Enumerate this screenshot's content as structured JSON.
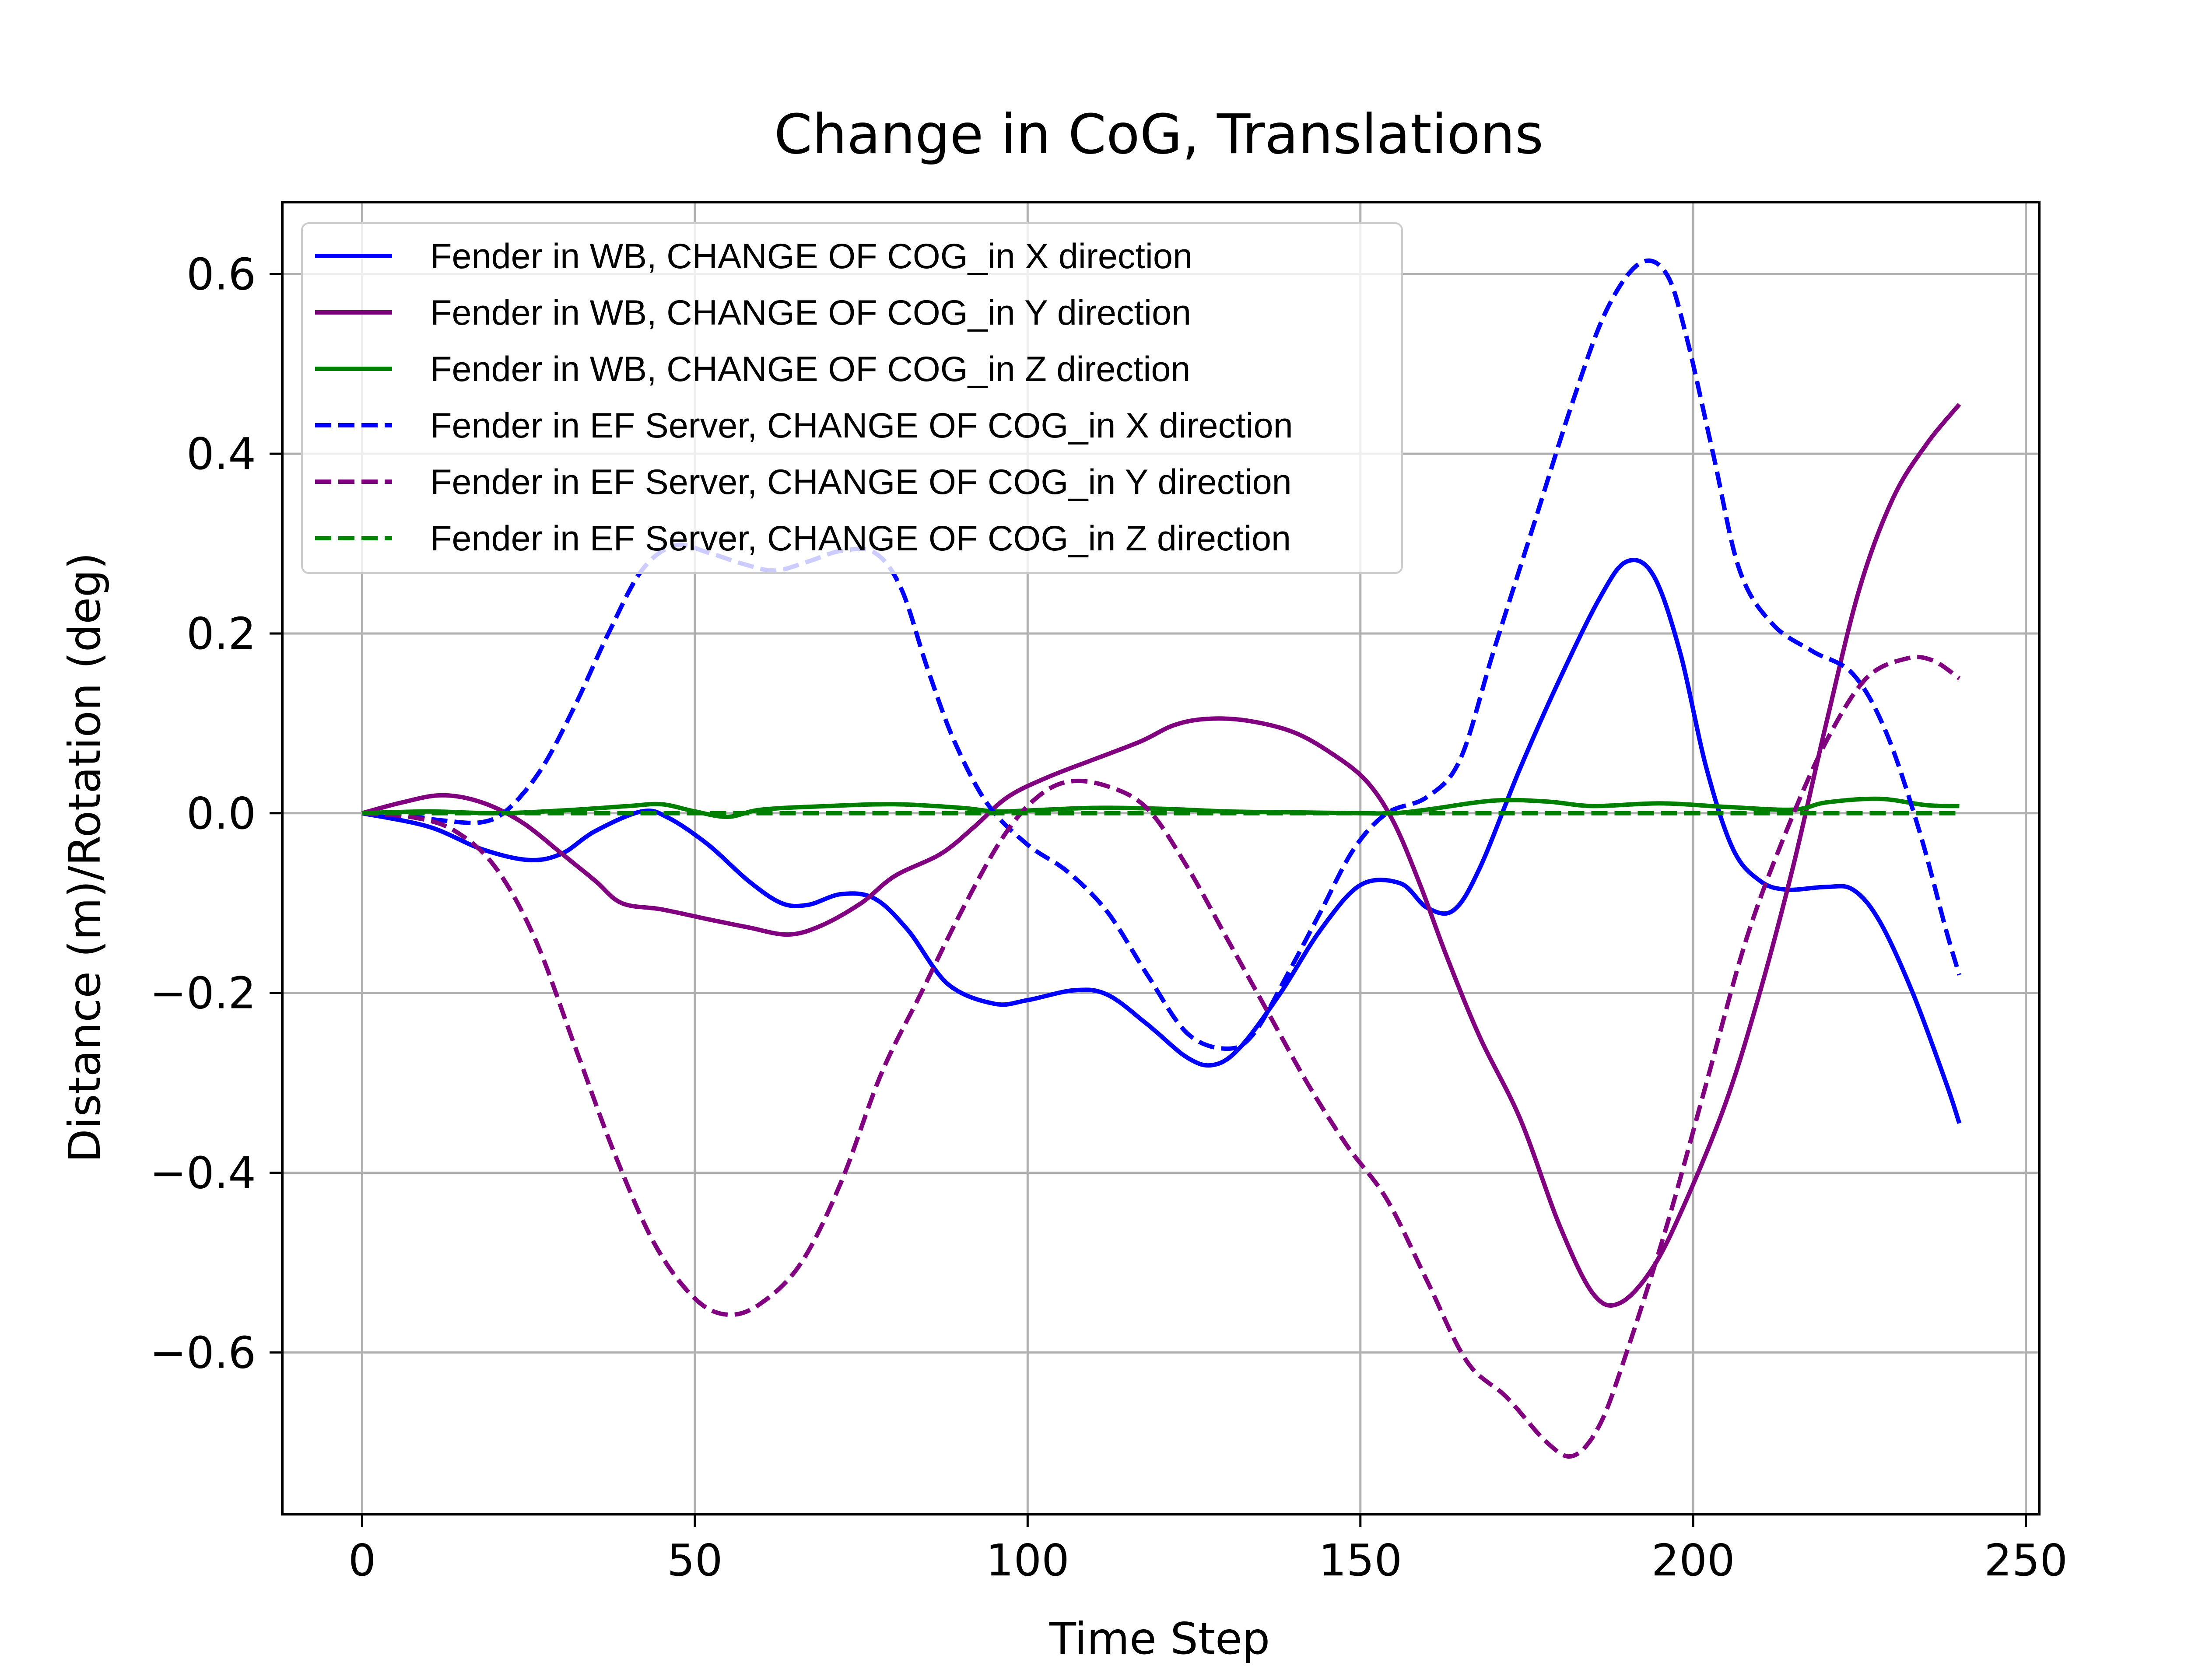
{
  "chart_data": {
    "type": "line",
    "title": "Change in CoG, Translations",
    "xlabel": "Time Step",
    "ylabel": "Distance (m)/Rotation (deg)",
    "xlim": [
      -12,
      252
    ],
    "ylim": [
      -0.78,
      0.68
    ],
    "x_ticks": [
      0,
      50,
      100,
      150,
      200,
      250
    ],
    "x_tick_labels": [
      "0",
      "50",
      "100",
      "150",
      "200",
      "250"
    ],
    "y_ticks": [
      0.6,
      0.4,
      0.2,
      0.0,
      -0.2,
      -0.4,
      -0.6
    ],
    "y_tick_labels": [
      "0.6",
      "0.4",
      "0.2",
      "0.0",
      "−0.2",
      "−0.4",
      "−0.6"
    ],
    "grid": true,
    "legend_position": "upper-left",
    "series": [
      {
        "name": "Fender in WB, CHANGE OF COG_in X direction",
        "color": "#0000ff",
        "style": "solid",
        "points": [
          [
            0,
            0
          ],
          [
            10,
            -0.015
          ],
          [
            18,
            -0.04
          ],
          [
            25,
            -0.052
          ],
          [
            30,
            -0.045
          ],
          [
            35,
            -0.02
          ],
          [
            42,
            0.002
          ],
          [
            46,
            -0.005
          ],
          [
            52,
            -0.035
          ],
          [
            58,
            -0.075
          ],
          [
            63,
            -0.1
          ],
          [
            67,
            -0.102
          ],
          [
            72,
            -0.09
          ],
          [
            77,
            -0.095
          ],
          [
            82,
            -0.13
          ],
          [
            88,
            -0.19
          ],
          [
            95,
            -0.212
          ],
          [
            100,
            -0.208
          ],
          [
            107,
            -0.197
          ],
          [
            112,
            -0.202
          ],
          [
            118,
            -0.235
          ],
          [
            124,
            -0.272
          ],
          [
            128,
            -0.28
          ],
          [
            132,
            -0.26
          ],
          [
            138,
            -0.2
          ],
          [
            144,
            -0.13
          ],
          [
            150,
            -0.08
          ],
          [
            156,
            -0.078
          ],
          [
            160,
            -0.105
          ],
          [
            164,
            -0.108
          ],
          [
            168,
            -0.06
          ],
          [
            174,
            0.05
          ],
          [
            180,
            0.15
          ],
          [
            186,
            0.24
          ],
          [
            190,
            0.28
          ],
          [
            194,
            0.265
          ],
          [
            198,
            0.18
          ],
          [
            202,
            0.05
          ],
          [
            206,
            -0.04
          ],
          [
            210,
            -0.075
          ],
          [
            214,
            -0.085
          ],
          [
            220,
            -0.082
          ],
          [
            224,
            -0.085
          ],
          [
            228,
            -0.12
          ],
          [
            233,
            -0.2
          ],
          [
            238,
            -0.3
          ],
          [
            240,
            -0.345
          ]
        ]
      },
      {
        "name": "Fender in WB, CHANGE OF COG_in Y direction",
        "color": "#800080",
        "style": "solid",
        "points": [
          [
            0,
            0
          ],
          [
            6,
            0.012
          ],
          [
            12,
            0.02
          ],
          [
            18,
            0.012
          ],
          [
            24,
            -0.01
          ],
          [
            30,
            -0.045
          ],
          [
            35,
            -0.075
          ],
          [
            39,
            -0.1
          ],
          [
            45,
            -0.107
          ],
          [
            52,
            -0.118
          ],
          [
            58,
            -0.127
          ],
          [
            64,
            -0.135
          ],
          [
            69,
            -0.125
          ],
          [
            75,
            -0.1
          ],
          [
            80,
            -0.07
          ],
          [
            87,
            -0.045
          ],
          [
            92,
            -0.015
          ],
          [
            97,
            0.018
          ],
          [
            103,
            0.04
          ],
          [
            110,
            0.06
          ],
          [
            117,
            0.08
          ],
          [
            122,
            0.098
          ],
          [
            127,
            0.105
          ],
          [
            133,
            0.103
          ],
          [
            140,
            0.09
          ],
          [
            146,
            0.065
          ],
          [
            151,
            0.035
          ],
          [
            155,
            -0.01
          ],
          [
            159,
            -0.08
          ],
          [
            163,
            -0.16
          ],
          [
            168,
            -0.25
          ],
          [
            174,
            -0.34
          ],
          [
            180,
            -0.46
          ],
          [
            185,
            -0.535
          ],
          [
            189,
            -0.545
          ],
          [
            194,
            -0.505
          ],
          [
            199,
            -0.43
          ],
          [
            205,
            -0.32
          ],
          [
            210,
            -0.2
          ],
          [
            215,
            -0.06
          ],
          [
            220,
            0.1
          ],
          [
            225,
            0.25
          ],
          [
            230,
            0.35
          ],
          [
            235,
            0.41
          ],
          [
            240,
            0.455
          ]
        ]
      },
      {
        "name": "Fender in WB, CHANGE OF COG_in Z direction",
        "color": "#008000",
        "style": "solid",
        "points": [
          [
            0,
            0
          ],
          [
            10,
            0.002
          ],
          [
            20,
            0.0
          ],
          [
            30,
            0.003
          ],
          [
            40,
            0.008
          ],
          [
            45,
            0.01
          ],
          [
            50,
            0.002
          ],
          [
            55,
            -0.004
          ],
          [
            60,
            0.004
          ],
          [
            70,
            0.008
          ],
          [
            80,
            0.01
          ],
          [
            90,
            0.006
          ],
          [
            95,
            0.002
          ],
          [
            100,
            0.003
          ],
          [
            110,
            0.006
          ],
          [
            120,
            0.005
          ],
          [
            130,
            0.002
          ],
          [
            140,
            0.001
          ],
          [
            150,
            0.0
          ],
          [
            155,
            0.0
          ],
          [
            160,
            0.004
          ],
          [
            170,
            0.014
          ],
          [
            178,
            0.013
          ],
          [
            185,
            0.008
          ],
          [
            195,
            0.011
          ],
          [
            205,
            0.007
          ],
          [
            215,
            0.004
          ],
          [
            220,
            0.012
          ],
          [
            228,
            0.016
          ],
          [
            235,
            0.009
          ],
          [
            240,
            0.008
          ]
        ]
      },
      {
        "name": "Fender in EF Server, CHANGE OF COG_in X direction",
        "color": "#0000ff",
        "style": "dashed",
        "points": [
          [
            0,
            0
          ],
          [
            6,
            -0.002
          ],
          [
            12,
            -0.008
          ],
          [
            18,
            -0.01
          ],
          [
            22,
            0.005
          ],
          [
            27,
            0.05
          ],
          [
            32,
            0.12
          ],
          [
            37,
            0.2
          ],
          [
            42,
            0.27
          ],
          [
            47,
            0.298
          ],
          [
            52,
            0.29
          ],
          [
            57,
            0.278
          ],
          [
            62,
            0.27
          ],
          [
            67,
            0.28
          ],
          [
            72,
            0.292
          ],
          [
            77,
            0.29
          ],
          [
            81,
            0.25
          ],
          [
            85,
            0.16
          ],
          [
            89,
            0.08
          ],
          [
            94,
            0.01
          ],
          [
            100,
            -0.035
          ],
          [
            106,
            -0.065
          ],
          [
            112,
            -0.11
          ],
          [
            118,
            -0.18
          ],
          [
            124,
            -0.245
          ],
          [
            130,
            -0.262
          ],
          [
            134,
            -0.245
          ],
          [
            139,
            -0.18
          ],
          [
            144,
            -0.11
          ],
          [
            149,
            -0.04
          ],
          [
            154,
            0.0
          ],
          [
            160,
            0.018
          ],
          [
            165,
            0.06
          ],
          [
            170,
            0.18
          ],
          [
            176,
            0.32
          ],
          [
            182,
            0.46
          ],
          [
            187,
            0.56
          ],
          [
            192,
            0.612
          ],
          [
            196,
            0.6
          ],
          [
            199,
            0.53
          ],
          [
            203,
            0.4
          ],
          [
            207,
            0.27
          ],
          [
            212,
            0.21
          ],
          [
            218,
            0.18
          ],
          [
            224,
            0.155
          ],
          [
            229,
            0.09
          ],
          [
            234,
            -0.02
          ],
          [
            238,
            -0.13
          ],
          [
            240,
            -0.18
          ]
        ]
      },
      {
        "name": "Fender in EF Server, CHANGE OF COG_in Y direction",
        "color": "#800080",
        "style": "dashed",
        "points": [
          [
            0,
            0
          ],
          [
            8,
            -0.005
          ],
          [
            14,
            -0.02
          ],
          [
            20,
            -0.06
          ],
          [
            26,
            -0.14
          ],
          [
            32,
            -0.26
          ],
          [
            38,
            -0.38
          ],
          [
            44,
            -0.48
          ],
          [
            50,
            -0.54
          ],
          [
            55,
            -0.558
          ],
          [
            60,
            -0.545
          ],
          [
            66,
            -0.5
          ],
          [
            72,
            -0.41
          ],
          [
            78,
            -0.29
          ],
          [
            84,
            -0.2
          ],
          [
            90,
            -0.11
          ],
          [
            96,
            -0.03
          ],
          [
            101,
            0.015
          ],
          [
            106,
            0.035
          ],
          [
            112,
            0.03
          ],
          [
            118,
            0.005
          ],
          [
            124,
            -0.06
          ],
          [
            130,
            -0.14
          ],
          [
            136,
            -0.22
          ],
          [
            142,
            -0.3
          ],
          [
            148,
            -0.37
          ],
          [
            154,
            -0.43
          ],
          [
            160,
            -0.52
          ],
          [
            166,
            -0.61
          ],
          [
            172,
            -0.65
          ],
          [
            178,
            -0.7
          ],
          [
            182,
            -0.715
          ],
          [
            186,
            -0.68
          ],
          [
            190,
            -0.6
          ],
          [
            196,
            -0.46
          ],
          [
            202,
            -0.3
          ],
          [
            208,
            -0.14
          ],
          [
            214,
            -0.02
          ],
          [
            220,
            0.08
          ],
          [
            226,
            0.15
          ],
          [
            232,
            0.172
          ],
          [
            236,
            0.17
          ],
          [
            240,
            0.15
          ]
        ]
      },
      {
        "name": "Fender in EF Server, CHANGE OF COG_in Z direction",
        "color": "#008000",
        "style": "dashed",
        "points": [
          [
            0,
            0
          ],
          [
            240,
            0
          ]
        ]
      }
    ]
  }
}
